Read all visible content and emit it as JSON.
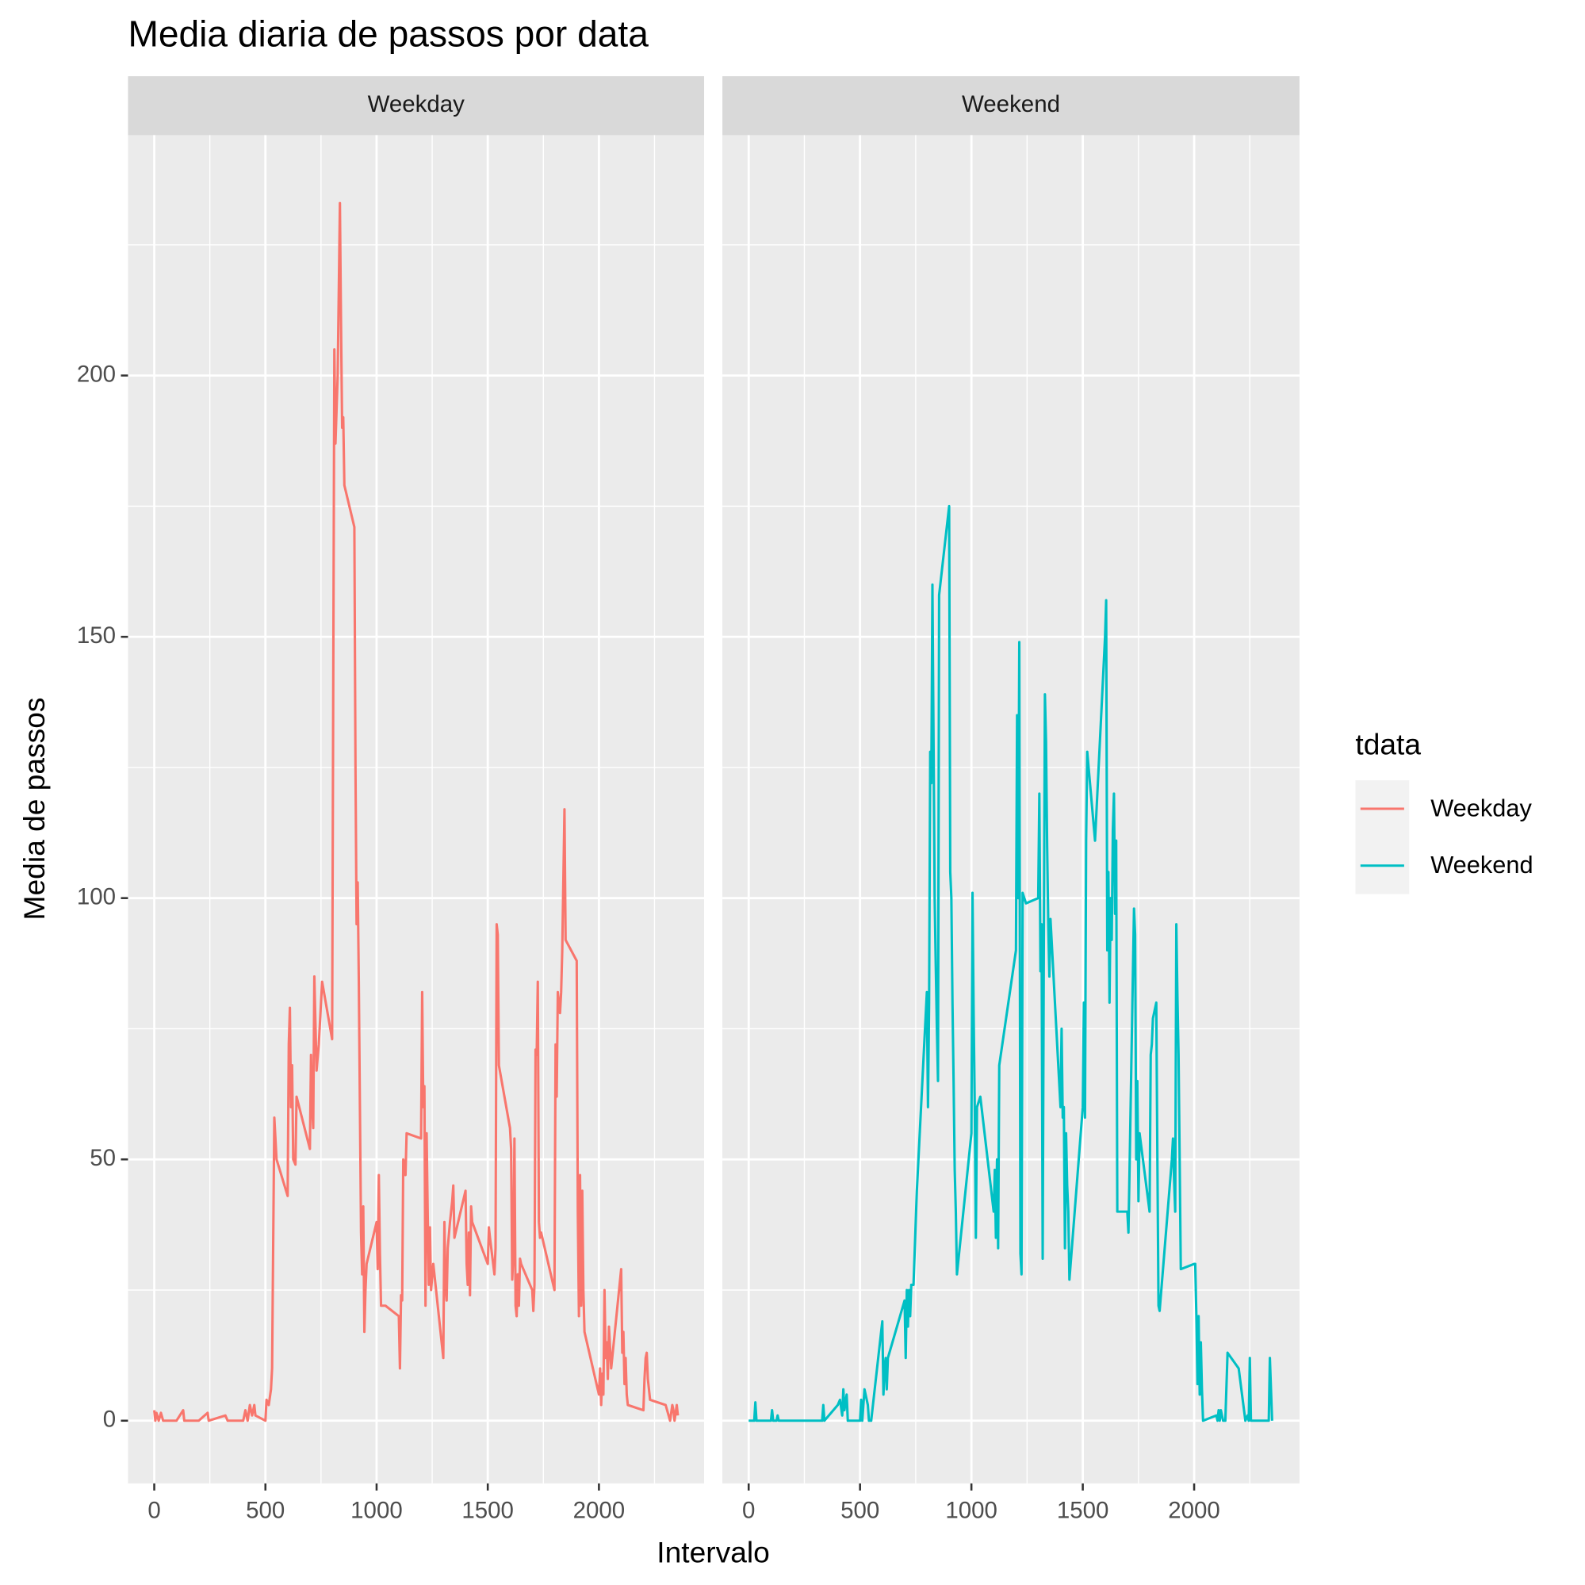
{
  "chart_data": {
    "type": "line",
    "title": "Media diaria de passos por data",
    "x_label": "Intervalo",
    "y_label": "Media de passos",
    "legend_title": "tdata",
    "legend_position": "right",
    "facet_by_series": true,
    "grid": true,
    "xlim": [
      -118,
      2473
    ],
    "ylim": [
      -12,
      246
    ],
    "xticks": [
      0,
      500,
      1000,
      1500,
      2000
    ],
    "yticks": [
      0,
      50,
      100,
      150,
      200
    ],
    "series": [
      {
        "name": "Weekday",
        "color": "#F8766D",
        "x": [
          0,
          5,
          10,
          20,
          30,
          40,
          100,
          130,
          135,
          200,
          240,
          245,
          320,
          330,
          400,
          410,
          420,
          430,
          440,
          450,
          455,
          500,
          505,
          515,
          525,
          530,
          540,
          550,
          600,
          605,
          610,
          615,
          620,
          625,
          635,
          640,
          700,
          705,
          710,
          715,
          720,
          730,
          740,
          755,
          800,
          805,
          810,
          815,
          825,
          835,
          840,
          845,
          850,
          855,
          900,
          905,
          910,
          915,
          920,
          925,
          930,
          935,
          940,
          945,
          950,
          955,
          1000,
          1005,
          1010,
          1015,
          1020,
          1040,
          1100,
          1105,
          1110,
          1115,
          1120,
          1130,
          1135,
          1200,
          1205,
          1210,
          1215,
          1220,
          1225,
          1230,
          1235,
          1240,
          1245,
          1255,
          1300,
          1305,
          1310,
          1315,
          1320,
          1330,
          1340,
          1345,
          1350,
          1400,
          1405,
          1410,
          1415,
          1420,
          1425,
          1430,
          1500,
          1505,
          1510,
          1530,
          1535,
          1540,
          1545,
          1550,
          1600,
          1605,
          1610,
          1615,
          1620,
          1625,
          1630,
          1635,
          1640,
          1645,
          1650,
          1700,
          1705,
          1710,
          1715,
          1720,
          1725,
          1730,
          1735,
          1740,
          1800,
          1805,
          1810,
          1815,
          1820,
          1825,
          1830,
          1835,
          1845,
          1850,
          1900,
          1905,
          1910,
          1915,
          1920,
          1925,
          1930,
          1935,
          2000,
          2005,
          2010,
          2015,
          2020,
          2025,
          2030,
          2035,
          2040,
          2045,
          2050,
          2055,
          2100,
          2105,
          2110,
          2115,
          2120,
          2125,
          2130,
          2200,
          2205,
          2210,
          2215,
          2220,
          2230,
          2300,
          2320,
          2330,
          2335,
          2340,
          2350,
          2355
        ],
        "values": [
          2,
          0,
          1.5,
          0,
          1.5,
          0,
          0,
          2,
          0,
          0,
          1.5,
          0,
          1,
          0,
          0,
          2,
          0,
          3,
          1,
          3,
          1,
          0,
          4,
          3,
          6,
          10,
          58,
          50,
          43,
          72,
          79,
          60,
          68,
          50,
          49,
          62,
          52,
          70,
          60,
          56,
          85,
          67,
          72,
          84,
          73,
          140,
          205,
          187,
          200,
          233,
          210,
          190,
          192,
          179,
          171,
          125,
          95,
          103,
          84,
          60,
          36,
          28,
          41,
          17,
          25,
          30,
          38,
          29,
          47,
          32,
          22,
          22,
          20,
          10,
          24,
          23,
          50,
          47,
          55,
          54,
          82,
          60,
          64,
          22,
          55,
          39,
          26,
          37,
          25,
          30,
          12,
          38,
          26,
          23,
          33,
          38,
          42,
          45,
          35,
          44,
          30,
          26,
          36,
          24,
          41,
          38,
          30,
          37,
          35,
          28,
          33,
          95,
          93,
          68,
          56,
          52,
          27,
          32,
          54,
          22,
          20,
          28,
          22,
          31,
          30,
          25,
          21,
          26,
          71,
          70,
          84,
          38,
          35,
          36,
          25,
          72,
          62,
          82,
          80,
          78,
          82,
          90,
          117,
          92,
          88,
          40,
          20,
          47,
          22,
          44,
          25,
          17,
          5,
          10,
          3,
          9,
          5,
          25,
          12,
          15,
          8,
          18,
          14,
          10,
          29,
          13,
          17,
          7,
          12,
          5,
          3,
          2,
          8,
          12,
          13,
          8,
          4,
          3,
          0,
          3,
          2,
          0,
          3,
          1
        ]
      },
      {
        "name": "Weekend",
        "color": "#00BFC4",
        "x": [
          0,
          25,
          30,
          35,
          100,
          105,
          110,
          125,
          130,
          135,
          200,
          300,
          330,
          335,
          340,
          400,
          410,
          420,
          425,
          430,
          440,
          445,
          500,
          505,
          510,
          520,
          525,
          535,
          540,
          545,
          550,
          600,
          605,
          610,
          615,
          620,
          625,
          700,
          705,
          710,
          715,
          720,
          725,
          730,
          740,
          755,
          800,
          805,
          810,
          815,
          820,
          825,
          830,
          835,
          840,
          845,
          850,
          855,
          900,
          905,
          910,
          915,
          920,
          925,
          930,
          935,
          1000,
          1005,
          1010,
          1015,
          1020,
          1025,
          1040,
          1100,
          1105,
          1110,
          1115,
          1120,
          1125,
          1200,
          1205,
          1210,
          1215,
          1220,
          1225,
          1230,
          1245,
          1300,
          1305,
          1310,
          1315,
          1320,
          1325,
          1330,
          1335,
          1340,
          1345,
          1350,
          1355,
          1400,
          1405,
          1410,
          1415,
          1420,
          1425,
          1430,
          1435,
          1440,
          1500,
          1505,
          1510,
          1515,
          1520,
          1555,
          1600,
          1605,
          1610,
          1615,
          1620,
          1625,
          1630,
          1635,
          1640,
          1645,
          1650,
          1655,
          1700,
          1705,
          1710,
          1730,
          1735,
          1740,
          1745,
          1750,
          1755,
          1800,
          1805,
          1810,
          1815,
          1830,
          1835,
          1840,
          1845,
          1900,
          1905,
          1910,
          1915,
          1920,
          1925,
          1930,
          1935,
          1940,
          2000,
          2005,
          2010,
          2015,
          2020,
          2025,
          2030,
          2035,
          2040,
          2100,
          2105,
          2110,
          2115,
          2120,
          2130,
          2140,
          2150,
          2200,
          2230,
          2240,
          2245,
          2250,
          2255,
          2335,
          2340,
          2350
        ],
        "values": [
          0,
          0,
          3.5,
          0,
          0,
          2,
          0,
          0,
          1,
          0,
          0,
          0,
          0,
          3,
          0,
          3,
          4,
          1,
          6,
          2,
          5,
          0,
          0,
          4,
          0,
          6,
          5,
          3,
          0,
          0,
          0,
          19,
          5,
          10,
          12,
          6,
          12,
          23,
          12,
          25,
          18,
          25,
          20,
          26,
          26,
          44,
          82,
          60,
          80,
          128,
          122,
          160,
          130,
          100,
          87,
          75,
          65,
          158,
          175,
          105,
          100,
          80,
          65,
          48,
          40,
          28,
          55,
          101,
          78,
          60,
          35,
          60,
          62,
          40,
          48,
          35,
          50,
          33,
          68,
          90,
          135,
          100,
          149,
          32,
          28,
          101,
          99,
          100,
          120,
          86,
          95,
          31,
          90,
          139,
          130,
          110,
          95,
          85,
          96,
          60,
          75,
          58,
          60,
          33,
          55,
          45,
          40,
          27,
          60,
          80,
          58,
          111,
          128,
          111,
          150,
          157,
          90,
          105,
          80,
          100,
          92,
          113,
          120,
          97,
          111,
          40,
          40,
          36,
          48,
          98,
          93,
          50,
          65,
          42,
          55,
          40,
          70,
          72,
          77,
          80,
          50,
          22,
          21,
          50,
          54,
          46,
          40,
          95,
          81,
          70,
          50,
          29,
          30,
          30,
          20,
          7,
          20,
          5,
          15,
          6,
          0,
          1,
          0,
          2,
          0,
          2,
          0,
          0,
          13,
          10,
          0,
          1,
          0,
          12,
          0,
          0,
          12,
          0
        ]
      }
    ]
  }
}
